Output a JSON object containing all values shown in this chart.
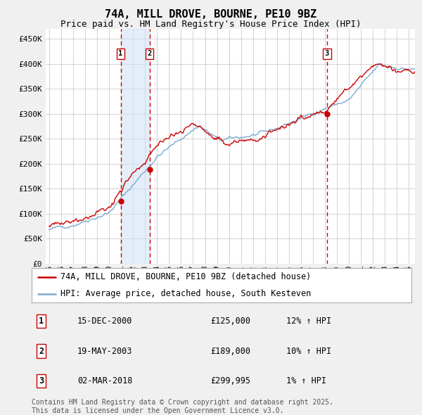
{
  "title": "74A, MILL DROVE, BOURNE, PE10 9BZ",
  "subtitle": "Price paid vs. HM Land Registry's House Price Index (HPI)",
  "ylabel_ticks": [
    "£0",
    "£50K",
    "£100K",
    "£150K",
    "£200K",
    "£250K",
    "£300K",
    "£350K",
    "£400K",
    "£450K"
  ],
  "ytick_values": [
    0,
    50000,
    100000,
    150000,
    200000,
    250000,
    300000,
    350000,
    400000,
    450000
  ],
  "ylim": [
    0,
    470000
  ],
  "xlim_start": 1994.7,
  "xlim_end": 2025.5,
  "sale_color": "#cc0000",
  "hpi_color": "#7aaad0",
  "background_color": "#f0f0f0",
  "plot_bg_color": "#ffffff",
  "grid_color": "#cccccc",
  "vline_color": "#cc0000",
  "shade_color": "#cce0f5",
  "sale_label": "74A, MILL DROVE, BOURNE, PE10 9BZ (detached house)",
  "hpi_label": "HPI: Average price, detached house, South Kesteven",
  "transactions": [
    {
      "num": 1,
      "date": "15-DEC-2000",
      "date_float": 2000.96,
      "price": 125000,
      "pct": "12%",
      "dir": "↑"
    },
    {
      "num": 2,
      "date": "19-MAY-2003",
      "date_float": 2003.38,
      "price": 189000,
      "pct": "10%",
      "dir": "↑"
    },
    {
      "num": 3,
      "date": "02-MAR-2018",
      "date_float": 2018.17,
      "price": 299995,
      "pct": "1%",
      "dir": "↑"
    }
  ],
  "footnote": "Contains HM Land Registry data © Crown copyright and database right 2025.\nThis data is licensed under the Open Government Licence v3.0.",
  "title_fontsize": 11,
  "subtitle_fontsize": 9,
  "tick_fontsize": 8,
  "legend_fontsize": 8.5,
  "table_fontsize": 8.5,
  "footnote_fontsize": 7
}
